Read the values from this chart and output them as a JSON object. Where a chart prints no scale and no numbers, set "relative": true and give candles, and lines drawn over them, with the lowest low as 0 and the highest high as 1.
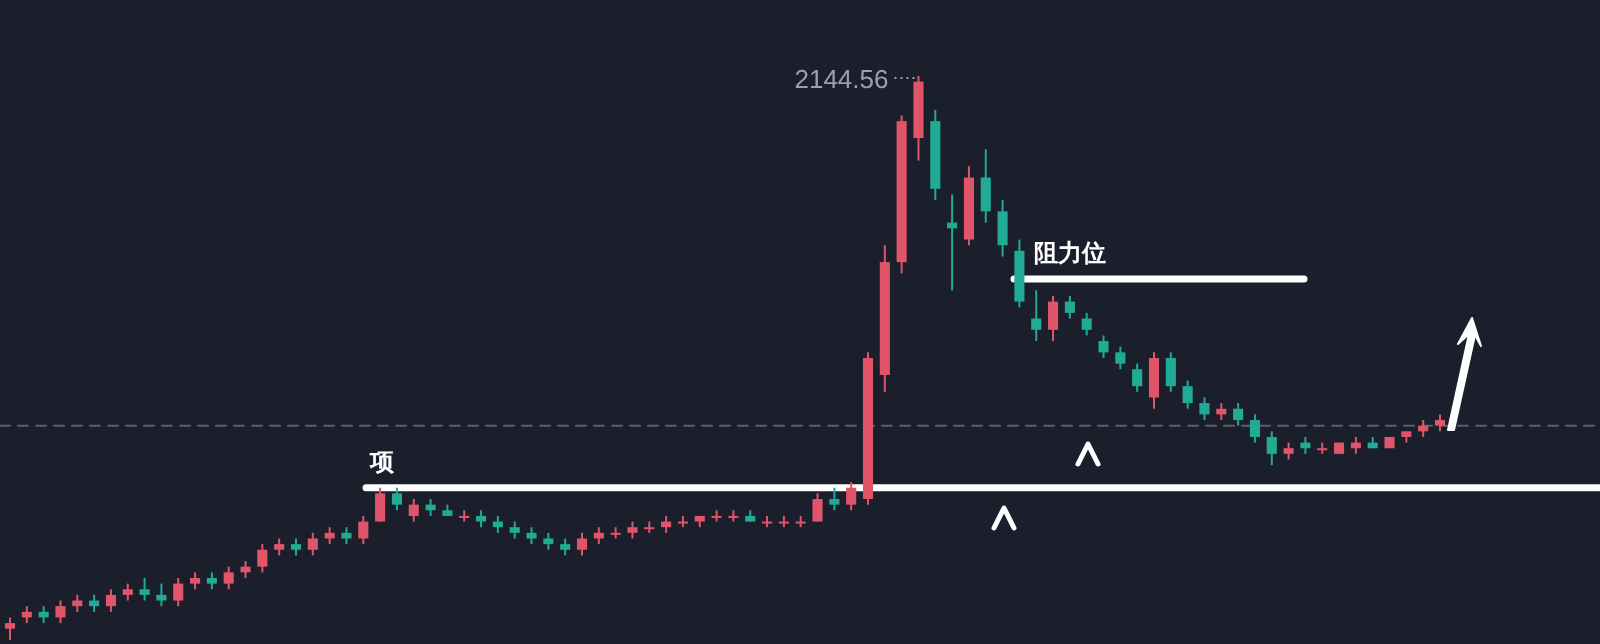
{
  "chart_data": {
    "type": "candlestick",
    "relative": true,
    "categories": [
      null,
      null,
      null,
      null,
      null,
      null,
      null,
      null,
      null,
      null,
      null,
      null,
      null,
      null,
      null,
      null,
      null,
      null,
      null,
      null,
      null,
      null,
      null,
      null,
      null,
      null,
      null,
      null,
      null,
      null,
      null,
      null,
      null,
      null,
      null,
      null,
      null,
      null,
      null,
      null,
      null,
      null,
      null,
      null,
      null,
      null,
      null,
      null,
      null,
      null,
      null,
      null,
      null,
      null,
      null,
      null,
      null,
      null,
      null,
      null,
      null,
      null,
      null,
      null,
      null,
      null,
      null,
      null,
      null,
      null,
      null,
      null,
      null,
      null,
      null,
      null,
      null,
      null,
      null,
      null,
      null,
      null,
      null,
      null,
      null,
      null
    ],
    "ohlc": [
      [
        0.02,
        0.04,
        0.0,
        0.03
      ],
      [
        0.04,
        0.06,
        0.03,
        0.05
      ],
      [
        0.05,
        0.06,
        0.03,
        0.04
      ],
      [
        0.04,
        0.07,
        0.03,
        0.06
      ],
      [
        0.06,
        0.08,
        0.05,
        0.07
      ],
      [
        0.07,
        0.08,
        0.05,
        0.06
      ],
      [
        0.06,
        0.09,
        0.05,
        0.08
      ],
      [
        0.08,
        0.1,
        0.07,
        0.09
      ],
      [
        0.09,
        0.11,
        0.07,
        0.08
      ],
      [
        0.08,
        0.1,
        0.06,
        0.07
      ],
      [
        0.07,
        0.11,
        0.06,
        0.1
      ],
      [
        0.1,
        0.12,
        0.09,
        0.11
      ],
      [
        0.11,
        0.12,
        0.09,
        0.1
      ],
      [
        0.1,
        0.13,
        0.09,
        0.12
      ],
      [
        0.12,
        0.14,
        0.11,
        0.13
      ],
      [
        0.13,
        0.17,
        0.12,
        0.16
      ],
      [
        0.16,
        0.18,
        0.15,
        0.17
      ],
      [
        0.17,
        0.18,
        0.15,
        0.16
      ],
      [
        0.16,
        0.19,
        0.15,
        0.18
      ],
      [
        0.18,
        0.2,
        0.17,
        0.19
      ],
      [
        0.19,
        0.2,
        0.17,
        0.18
      ],
      [
        0.18,
        0.22,
        0.17,
        0.21
      ],
      [
        0.21,
        0.27,
        0.21,
        0.26
      ],
      [
        0.26,
        0.27,
        0.23,
        0.24
      ],
      [
        0.22,
        0.25,
        0.21,
        0.24
      ],
      [
        0.24,
        0.25,
        0.22,
        0.23
      ],
      [
        0.23,
        0.24,
        0.22,
        0.22
      ],
      [
        0.22,
        0.23,
        0.21,
        0.22
      ],
      [
        0.22,
        0.23,
        0.2,
        0.21
      ],
      [
        0.21,
        0.22,
        0.19,
        0.2
      ],
      [
        0.2,
        0.21,
        0.18,
        0.19
      ],
      [
        0.19,
        0.2,
        0.17,
        0.18
      ],
      [
        0.18,
        0.19,
        0.16,
        0.17
      ],
      [
        0.17,
        0.18,
        0.15,
        0.16
      ],
      [
        0.16,
        0.19,
        0.15,
        0.18
      ],
      [
        0.18,
        0.2,
        0.17,
        0.19
      ],
      [
        0.19,
        0.2,
        0.18,
        0.19
      ],
      [
        0.19,
        0.21,
        0.18,
        0.2
      ],
      [
        0.2,
        0.21,
        0.19,
        0.2
      ],
      [
        0.2,
        0.22,
        0.19,
        0.21
      ],
      [
        0.21,
        0.22,
        0.2,
        0.21
      ],
      [
        0.21,
        0.22,
        0.2,
        0.22
      ],
      [
        0.22,
        0.23,
        0.21,
        0.22
      ],
      [
        0.22,
        0.23,
        0.21,
        0.22
      ],
      [
        0.22,
        0.23,
        0.21,
        0.21
      ],
      [
        0.21,
        0.22,
        0.2,
        0.21
      ],
      [
        0.21,
        0.22,
        0.2,
        0.21
      ],
      [
        0.21,
        0.22,
        0.2,
        0.21
      ],
      [
        0.21,
        0.26,
        0.21,
        0.25
      ],
      [
        0.25,
        0.27,
        0.23,
        0.24
      ],
      [
        0.24,
        0.28,
        0.23,
        0.27
      ],
      [
        0.25,
        0.51,
        0.24,
        0.5
      ],
      [
        0.47,
        0.7,
        0.44,
        0.67
      ],
      [
        0.67,
        0.93,
        0.65,
        0.92
      ],
      [
        0.89,
        1.0,
        0.85,
        0.99
      ],
      [
        0.92,
        0.94,
        0.78,
        0.8
      ],
      [
        0.74,
        0.79,
        0.62,
        0.73
      ],
      [
        0.71,
        0.84,
        0.7,
        0.82
      ],
      [
        0.82,
        0.87,
        0.74,
        0.76
      ],
      [
        0.76,
        0.78,
        0.68,
        0.7
      ],
      [
        0.69,
        0.71,
        0.59,
        0.6
      ],
      [
        0.57,
        0.62,
        0.53,
        0.55
      ],
      [
        0.55,
        0.61,
        0.53,
        0.6
      ],
      [
        0.6,
        0.61,
        0.57,
        0.58
      ],
      [
        0.57,
        0.58,
        0.54,
        0.55
      ],
      [
        0.53,
        0.54,
        0.5,
        0.51
      ],
      [
        0.51,
        0.52,
        0.48,
        0.49
      ],
      [
        0.48,
        0.49,
        0.44,
        0.45
      ],
      [
        0.43,
        0.51,
        0.41,
        0.5
      ],
      [
        0.5,
        0.51,
        0.44,
        0.45
      ],
      [
        0.45,
        0.46,
        0.41,
        0.42
      ],
      [
        0.42,
        0.43,
        0.39,
        0.4
      ],
      [
        0.4,
        0.42,
        0.39,
        0.41
      ],
      [
        0.41,
        0.42,
        0.38,
        0.39
      ],
      [
        0.39,
        0.4,
        0.35,
        0.36
      ],
      [
        0.36,
        0.37,
        0.31,
        0.33
      ],
      [
        0.33,
        0.35,
        0.32,
        0.34
      ],
      [
        0.35,
        0.36,
        0.33,
        0.34
      ],
      [
        0.34,
        0.35,
        0.33,
        0.34
      ],
      [
        0.33,
        0.35,
        0.33,
        0.35
      ],
      [
        0.34,
        0.36,
        0.33,
        0.35
      ],
      [
        0.35,
        0.36,
        0.34,
        0.34
      ],
      [
        0.34,
        0.36,
        0.34,
        0.36
      ],
      [
        0.36,
        0.37,
        0.35,
        0.37
      ],
      [
        0.37,
        0.39,
        0.36,
        0.38
      ],
      [
        0.38,
        0.4,
        0.37,
        0.39
      ]
    ],
    "annotations": [
      "2144.56"
    ],
    "ref_lines": [
      {
        "axis": "y",
        "value": 0.27,
        "label": "项",
        "color": "#ffffff",
        "line_style": "solid"
      },
      {
        "axis": "y",
        "value": 0.64,
        "label": "阻力位",
        "color": "#ffffff",
        "line_style": "solid"
      },
      {
        "axis": "y",
        "value": 0.38,
        "color": "#5a5f6e",
        "line_style": "dashed"
      }
    ]
  }
}
